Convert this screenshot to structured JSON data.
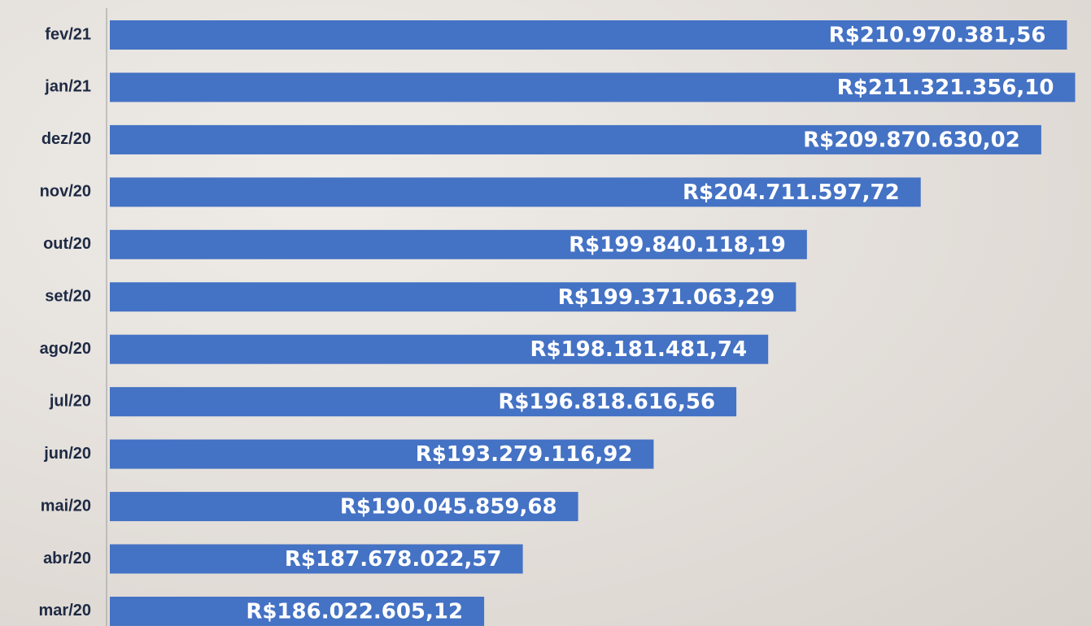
{
  "chart_data": {
    "type": "bar",
    "orientation": "horizontal",
    "categories": [
      "fev/21",
      "jan/21",
      "dez/20",
      "nov/20",
      "out/20",
      "set/20",
      "ago/20",
      "jul/20",
      "jun/20",
      "mai/20",
      "abr/20",
      "mar/20"
    ],
    "values": [
      210970381.56,
      211321356.1,
      209870630.02,
      204711597.72,
      199840118.19,
      199371063.29,
      198181481.74,
      196818616.56,
      193279116.92,
      190045859.68,
      187678022.57,
      186022605.12
    ],
    "value_labels": [
      "R$210.970.381,56",
      "R$211.321.356,10",
      "R$209.870.630,02",
      "R$204.711.597,72",
      "R$199.840.118,19",
      "R$199.371.063,29",
      "R$198.181.481,74",
      "R$196.818.616,56",
      "R$193.279.116,92",
      "R$190.045.859,68",
      "R$187.678.022,57",
      "R$186.022.605,12"
    ],
    "color": "#4472c4",
    "xlim": [
      170000000,
      212000000
    ]
  }
}
